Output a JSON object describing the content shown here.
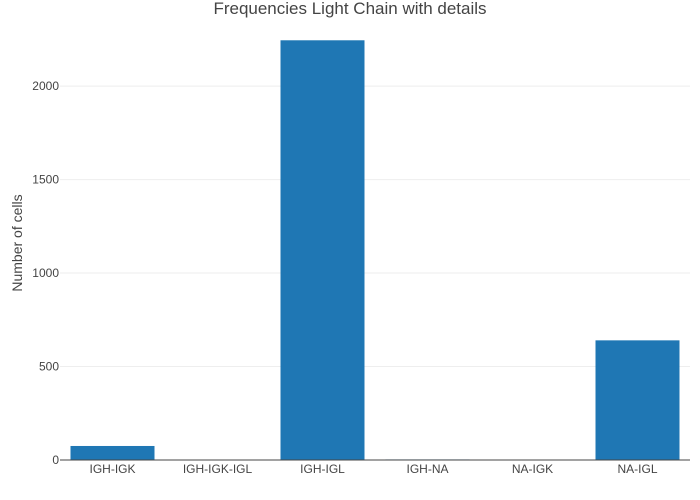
{
  "chart_data": {
    "type": "bar",
    "title": "Frequencies Light Chain with details",
    "xlabel": "",
    "ylabel": "Number of cells",
    "categories": [
      "IGH-IGK",
      "IGH-IGK-IGL",
      "IGH-IGL",
      "IGH-NA",
      "NA-IGK",
      "NA-IGL"
    ],
    "series": [
      {
        "values": [
          75,
          2,
          2245,
          3,
          2,
          640
        ]
      }
    ],
    "ylim": [
      0,
      2300
    ],
    "yticks": [
      0,
      500,
      1000,
      1500,
      2000
    ],
    "grid": true,
    "legend": "none",
    "colors": {
      "bar": "#1f77b4"
    }
  }
}
